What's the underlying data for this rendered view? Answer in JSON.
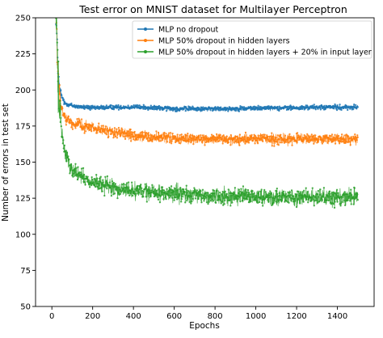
{
  "chart_data": {
    "type": "line",
    "title": "Test error on MNIST dataset for Multilayer Perceptron",
    "xlabel": "Epochs",
    "ylabel": "Number of errors in test set",
    "xlim": [
      -80,
      1580
    ],
    "ylim": [
      50,
      250
    ],
    "xticks": [
      0,
      200,
      400,
      600,
      800,
      1000,
      1200,
      1400
    ],
    "yticks": [
      50,
      75,
      100,
      125,
      150,
      175,
      200,
      225,
      250
    ],
    "grid": false,
    "legend_position": "top-right",
    "series": [
      {
        "name": "MLP no dropout",
        "color": "#1f77b4",
        "x": [
          20,
          25,
          30,
          35,
          40,
          50,
          60,
          80,
          100,
          150,
          200,
          300,
          400,
          500,
          600,
          700,
          800,
          900,
          1000,
          1100,
          1200,
          1300,
          1400,
          1500
        ],
        "y": [
          250,
          235,
          215,
          205,
          198,
          195,
          191,
          190,
          189,
          188,
          187.5,
          188,
          188,
          187.5,
          187,
          187,
          187,
          187,
          187.5,
          187.5,
          187.5,
          188,
          188,
          188
        ],
        "noise": 1.6
      },
      {
        "name": "MLP 50% dropout in hidden layers",
        "color": "#ff7f0e",
        "x": [
          20,
          25,
          30,
          35,
          40,
          50,
          60,
          80,
          100,
          150,
          200,
          250,
          300,
          400,
          500,
          600,
          700,
          800,
          900,
          1000,
          1100,
          1200,
          1300,
          1400,
          1500
        ],
        "y": [
          250,
          232,
          212,
          200,
          192,
          186,
          182,
          179,
          177,
          175,
          174,
          172,
          171,
          168,
          167,
          166.5,
          166,
          166,
          165.5,
          166,
          166,
          166,
          166,
          166,
          166
        ],
        "noise": 3.5
      },
      {
        "name": "MLP 50% dropout in hidden layers + 20% in input layer",
        "color": "#2ca02c",
        "x": [
          20,
          25,
          30,
          35,
          40,
          50,
          60,
          80,
          100,
          150,
          200,
          250,
          300,
          400,
          500,
          600,
          700,
          800,
          900,
          1000,
          1100,
          1200,
          1300,
          1400,
          1500
        ],
        "y": [
          250,
          230,
          208,
          192,
          182,
          170,
          160,
          150,
          145,
          139,
          136,
          134,
          132,
          130,
          129,
          128,
          127,
          126.5,
          126,
          126,
          126,
          125.5,
          125.5,
          126,
          126
        ],
        "noise": 5.5
      }
    ]
  }
}
